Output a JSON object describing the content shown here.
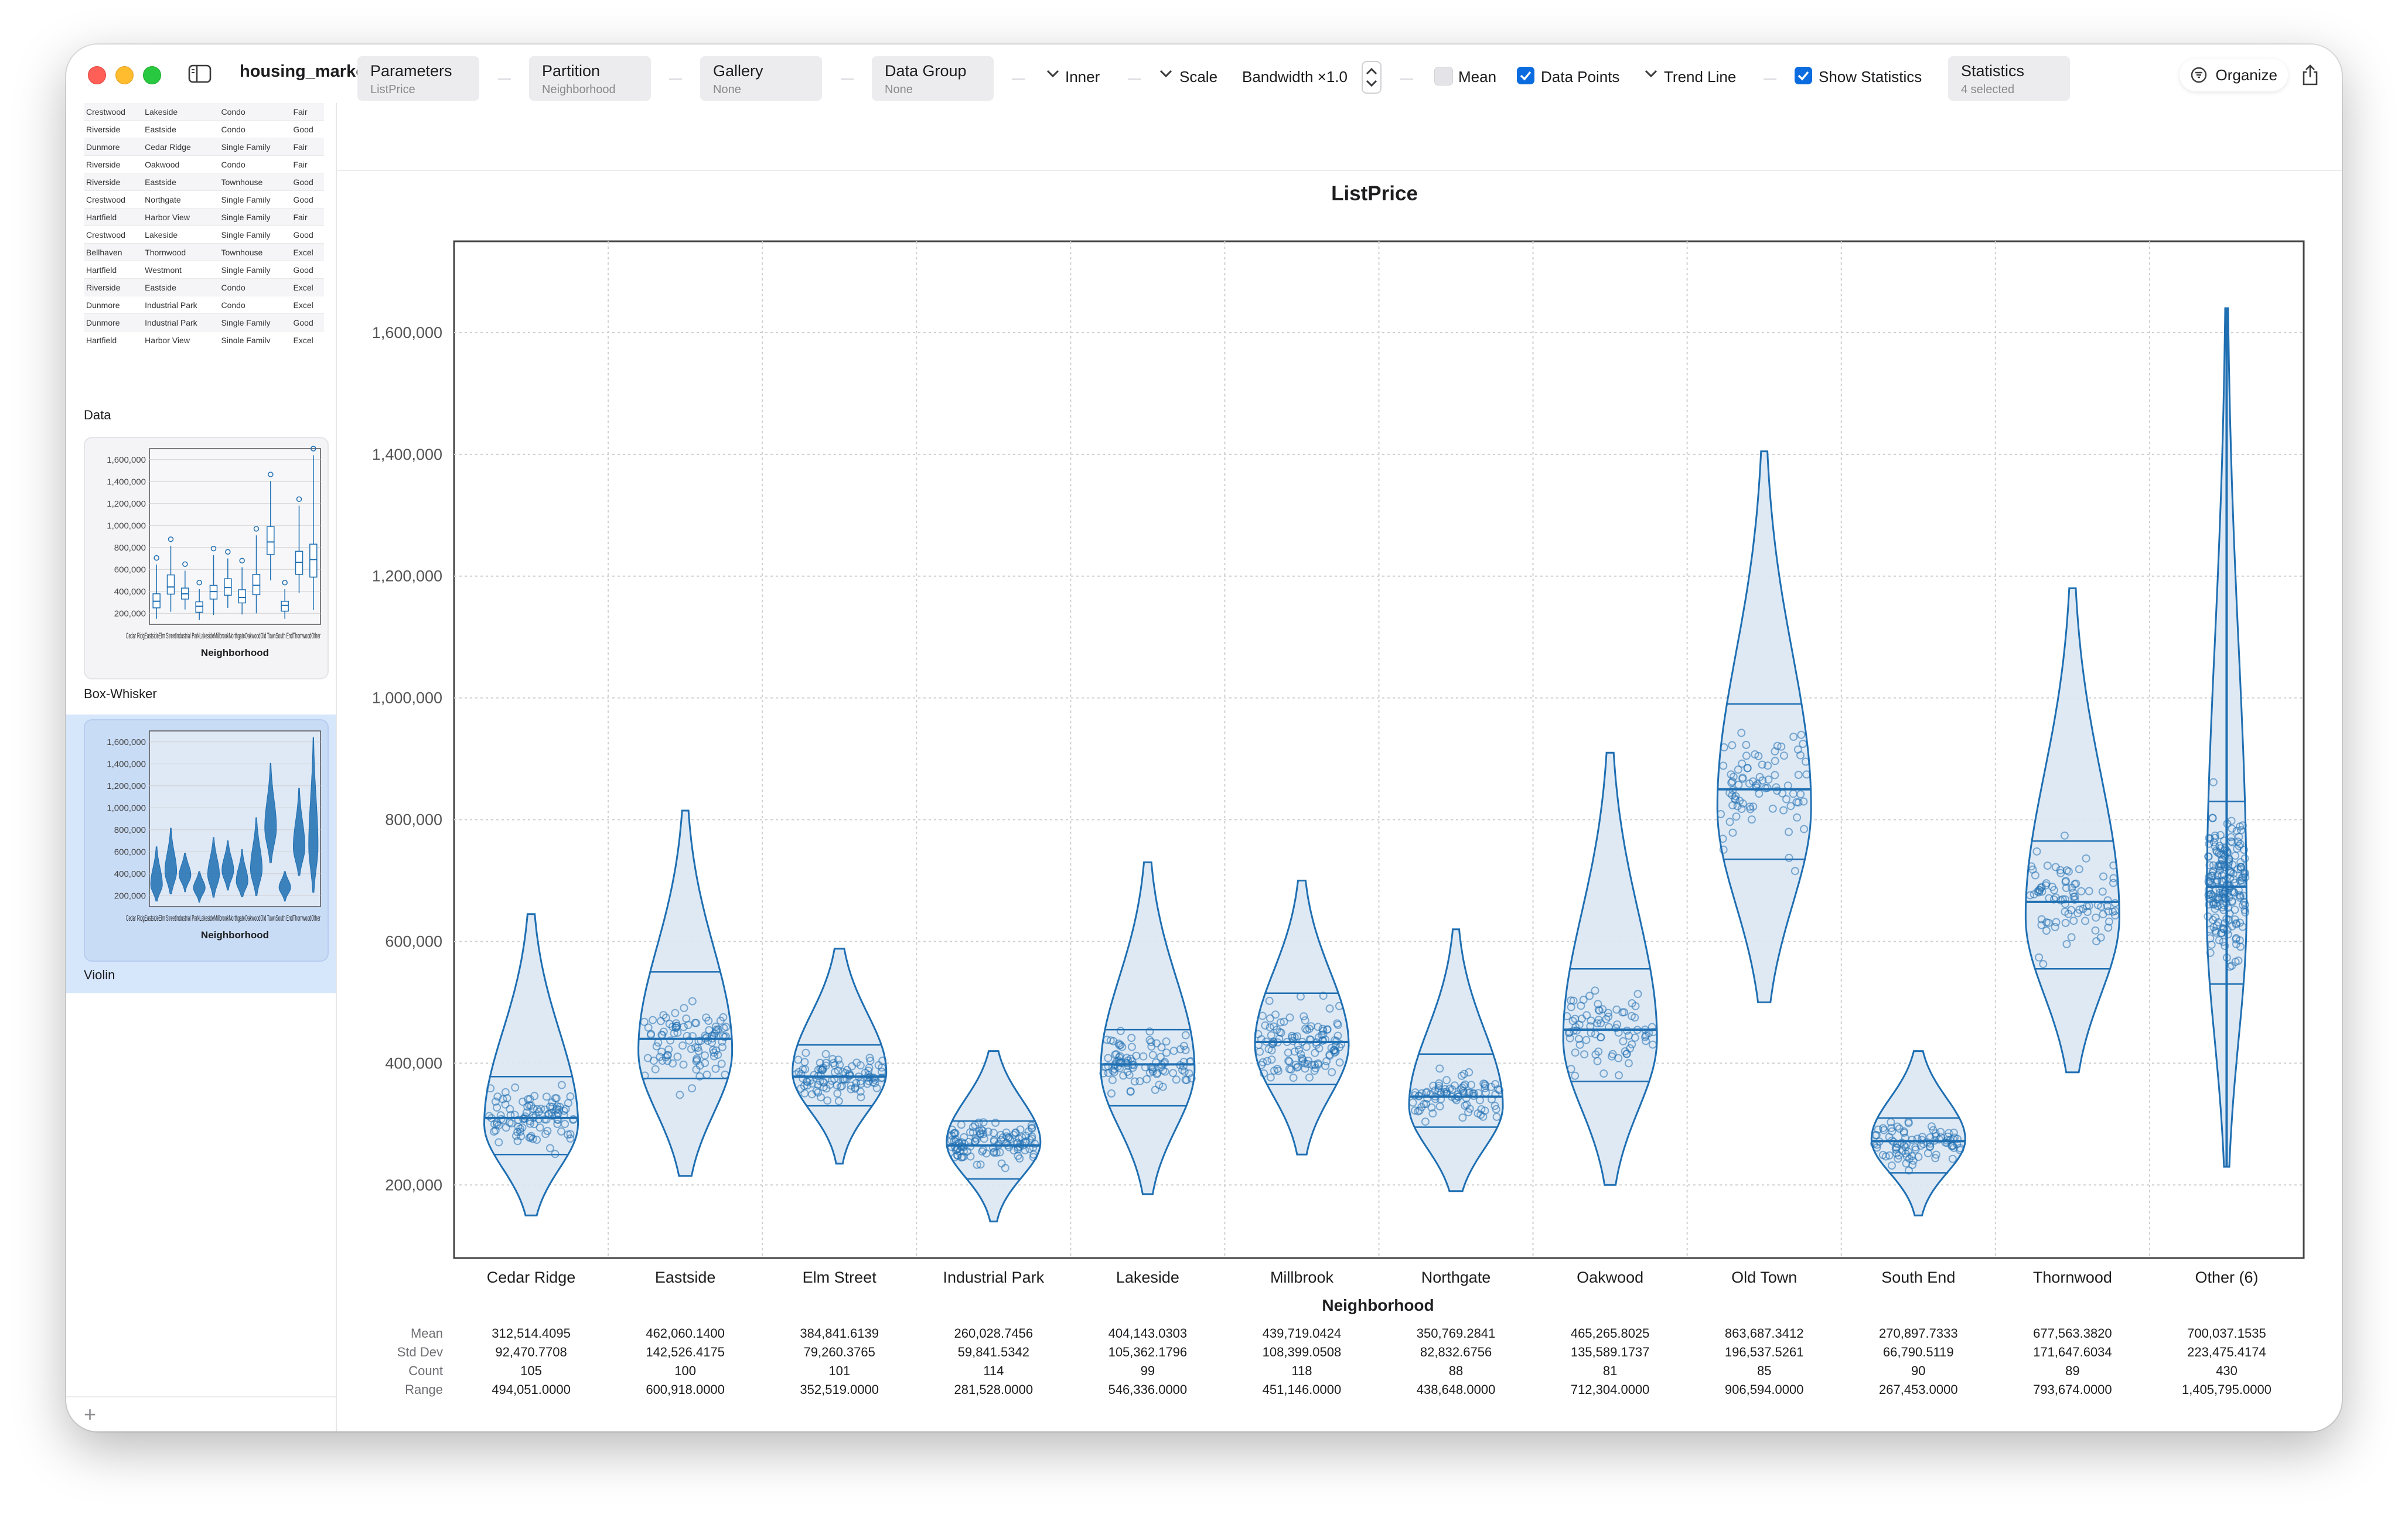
{
  "app": {
    "title": "housing_market"
  },
  "header": {
    "organize_label": "Organize"
  },
  "sidebar": {
    "data_rows": [
      [
        "Crestwood",
        "Lakeside",
        "Condo",
        "Fair"
      ],
      [
        "Riverside",
        "Eastside",
        "Condo",
        "Good"
      ],
      [
        "Dunmore",
        "Cedar Ridge",
        "Single Family",
        "Fair"
      ],
      [
        "Riverside",
        "Oakwood",
        "Condo",
        "Fair"
      ],
      [
        "Riverside",
        "Eastside",
        "Townhouse",
        "Good"
      ],
      [
        "Crestwood",
        "Northgate",
        "Single Family",
        "Good"
      ],
      [
        "Hartfield",
        "Harbor View",
        "Single Family",
        "Fair"
      ],
      [
        "Crestwood",
        "Lakeside",
        "Single Family",
        "Good"
      ],
      [
        "Bellhaven",
        "Thornwood",
        "Townhouse",
        "Excel"
      ],
      [
        "Hartfield",
        "Westmont",
        "Single Family",
        "Good"
      ],
      [
        "Riverside",
        "Eastside",
        "Condo",
        "Excel"
      ],
      [
        "Dunmore",
        "Industrial Park",
        "Condo",
        "Excel"
      ],
      [
        "Dunmore",
        "Industrial Park",
        "Single Family",
        "Good"
      ],
      [
        "Hartfield",
        "Harbor View",
        "Single Family",
        "Excel"
      ]
    ],
    "items": [
      {
        "label": "Data"
      },
      {
        "label": "Box-Whisker"
      },
      {
        "label": "Violin"
      }
    ],
    "thumb_ticks": [
      "1,600,000",
      "1,400,000",
      "1,200,000",
      "1,000,000",
      "800,000",
      "600,000",
      "400,000",
      "200,000"
    ],
    "thumb_xlabel": "Neighborhood",
    "thumb_cats": "Cedar RidgEastsideElm StreetIndustrial ParkLakesideMillbrookNorthgateOakwoodOld TownSouth EndThornwoodOther"
  },
  "toolbar": {
    "parameters": {
      "label": "Parameters",
      "value": "ListPrice"
    },
    "partition": {
      "label": "Partition",
      "value": "Neighborhood"
    },
    "gallery": {
      "label": "Gallery",
      "value": "None"
    },
    "data_group": {
      "label": "Data Group",
      "value": "None"
    },
    "inner_label": "Inner",
    "scale_label": "Scale",
    "bandwidth_label": "Bandwidth ×1.0",
    "mean_label": "Mean",
    "mean_checked": false,
    "data_points_label": "Data Points",
    "data_points_checked": true,
    "trend_line_label": "Trend Line",
    "show_statistics_label": "Show Statistics",
    "show_statistics_checked": true,
    "statistics": {
      "label": "Statistics",
      "value": "4 selected"
    }
  },
  "chart_data": {
    "type": "violin",
    "title": "ListPrice",
    "xlabel": "Neighborhood",
    "ylabel": "",
    "ylim": [
      80000,
      1750000
    ],
    "yticks": [
      200000,
      400000,
      600000,
      800000,
      1000000,
      1200000,
      1400000,
      1600000
    ],
    "ytick_labels": [
      "200,000",
      "400,000",
      "600,000",
      "800,000",
      "1,000,000",
      "1,200,000",
      "1,400,000",
      "1,600,000"
    ],
    "grid": true,
    "accent_color": "#1f6fb2",
    "fill_color": "#dbe7f3",
    "categories": [
      "Cedar Ridge",
      "Eastside",
      "Elm Street",
      "Industrial Park",
      "Lakeside",
      "Millbrook",
      "Northgate",
      "Oakwood",
      "Old Town",
      "South End",
      "Thornwood",
      "Other (6)"
    ],
    "violins": [
      {
        "min": 150000,
        "max": 645000,
        "q1": 250000,
        "median": 310000,
        "q3": 378000,
        "mode": 300000
      },
      {
        "min": 215000,
        "max": 815000,
        "q1": 375000,
        "median": 440000,
        "q3": 550000,
        "mode": 420000
      },
      {
        "min": 235000,
        "max": 588000,
        "q1": 330000,
        "median": 378000,
        "q3": 430000,
        "mode": 385000
      },
      {
        "min": 140000,
        "max": 420000,
        "q1": 210000,
        "median": 265000,
        "q3": 305000,
        "mode": 270000
      },
      {
        "min": 185000,
        "max": 730000,
        "q1": 330000,
        "median": 398000,
        "q3": 455000,
        "mode": 390000
      },
      {
        "min": 250000,
        "max": 700000,
        "q1": 365000,
        "median": 435000,
        "q3": 515000,
        "mode": 430000
      },
      {
        "min": 190000,
        "max": 620000,
        "q1": 295000,
        "median": 345000,
        "q3": 415000,
        "mode": 330000
      },
      {
        "min": 200000,
        "max": 910000,
        "q1": 370000,
        "median": 455000,
        "q3": 555000,
        "mode": 440000
      },
      {
        "min": 500000,
        "max": 1405000,
        "q1": 735000,
        "median": 850000,
        "q3": 990000,
        "mode": 820000
      },
      {
        "min": 150000,
        "max": 420000,
        "q1": 220000,
        "median": 272000,
        "q3": 310000,
        "mode": 275000
      },
      {
        "min": 385000,
        "max": 1180000,
        "q1": 555000,
        "median": 665000,
        "q3": 765000,
        "mode": 640000
      },
      {
        "min": 230000,
        "max": 1640000,
        "q1": 530000,
        "median": 690000,
        "q3": 830000,
        "mode": 650000
      }
    ],
    "statistics": {
      "row_labels": [
        "Mean",
        "Std Dev",
        "Count",
        "Range"
      ],
      "mean": [
        "312,514.4095",
        "462,060.1400",
        "384,841.6139",
        "260,028.7456",
        "404,143.0303",
        "439,719.0424",
        "350,769.2841",
        "465,265.8025",
        "863,687.3412",
        "270,897.7333",
        "677,563.3820",
        "700,037.1535"
      ],
      "std_dev": [
        "92,470.7708",
        "142,526.4175",
        "79,260.3765",
        "59,841.5342",
        "105,362.1796",
        "108,399.0508",
        "82,832.6756",
        "135,589.1737",
        "196,537.5261",
        "66,790.5119",
        "171,647.6034",
        "223,475.4174"
      ],
      "count": [
        "105",
        "100",
        "101",
        "114",
        "99",
        "118",
        "88",
        "81",
        "85",
        "90",
        "89",
        "430"
      ],
      "range": [
        "494,051.0000",
        "600,918.0000",
        "352,519.0000",
        "281,528.0000",
        "546,336.0000",
        "451,146.0000",
        "438,648.0000",
        "712,304.0000",
        "906,594.0000",
        "267,453.0000",
        "793,674.0000",
        "1,405,795.0000"
      ]
    }
  }
}
